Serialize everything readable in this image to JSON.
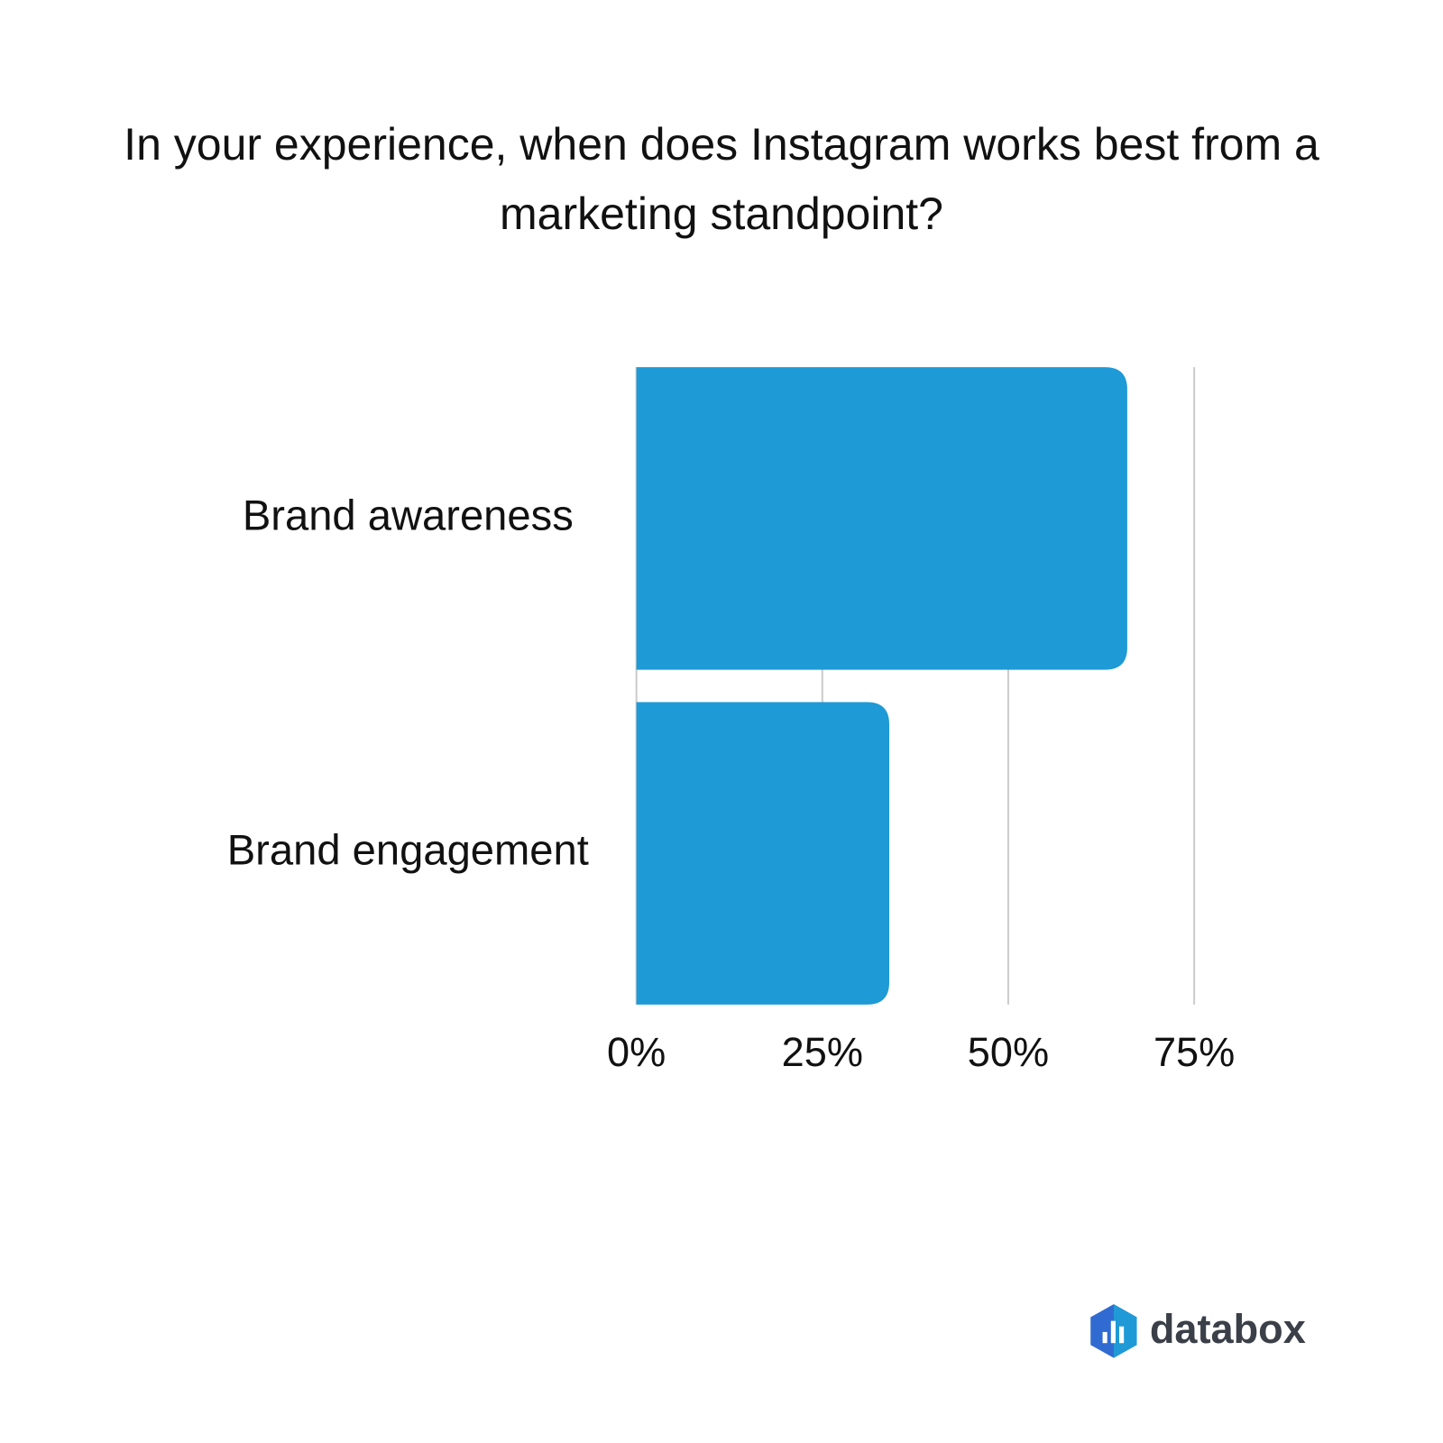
{
  "chart_data": {
    "type": "barh",
    "title": "In your experience, when does Instagram works best from a marketing standpoint?",
    "categories": [
      "Brand awareness",
      "Brand engagement"
    ],
    "values": [
      66,
      34
    ],
    "color": "#1e9ad6",
    "xlim": [
      0,
      75
    ],
    "xticks": [
      {
        "value": 0,
        "label": "0%"
      },
      {
        "value": 25,
        "label": "25%"
      },
      {
        "value": 50,
        "label": "50%"
      },
      {
        "value": 75,
        "label": "75%"
      }
    ],
    "grid": true,
    "logo": "databox"
  }
}
